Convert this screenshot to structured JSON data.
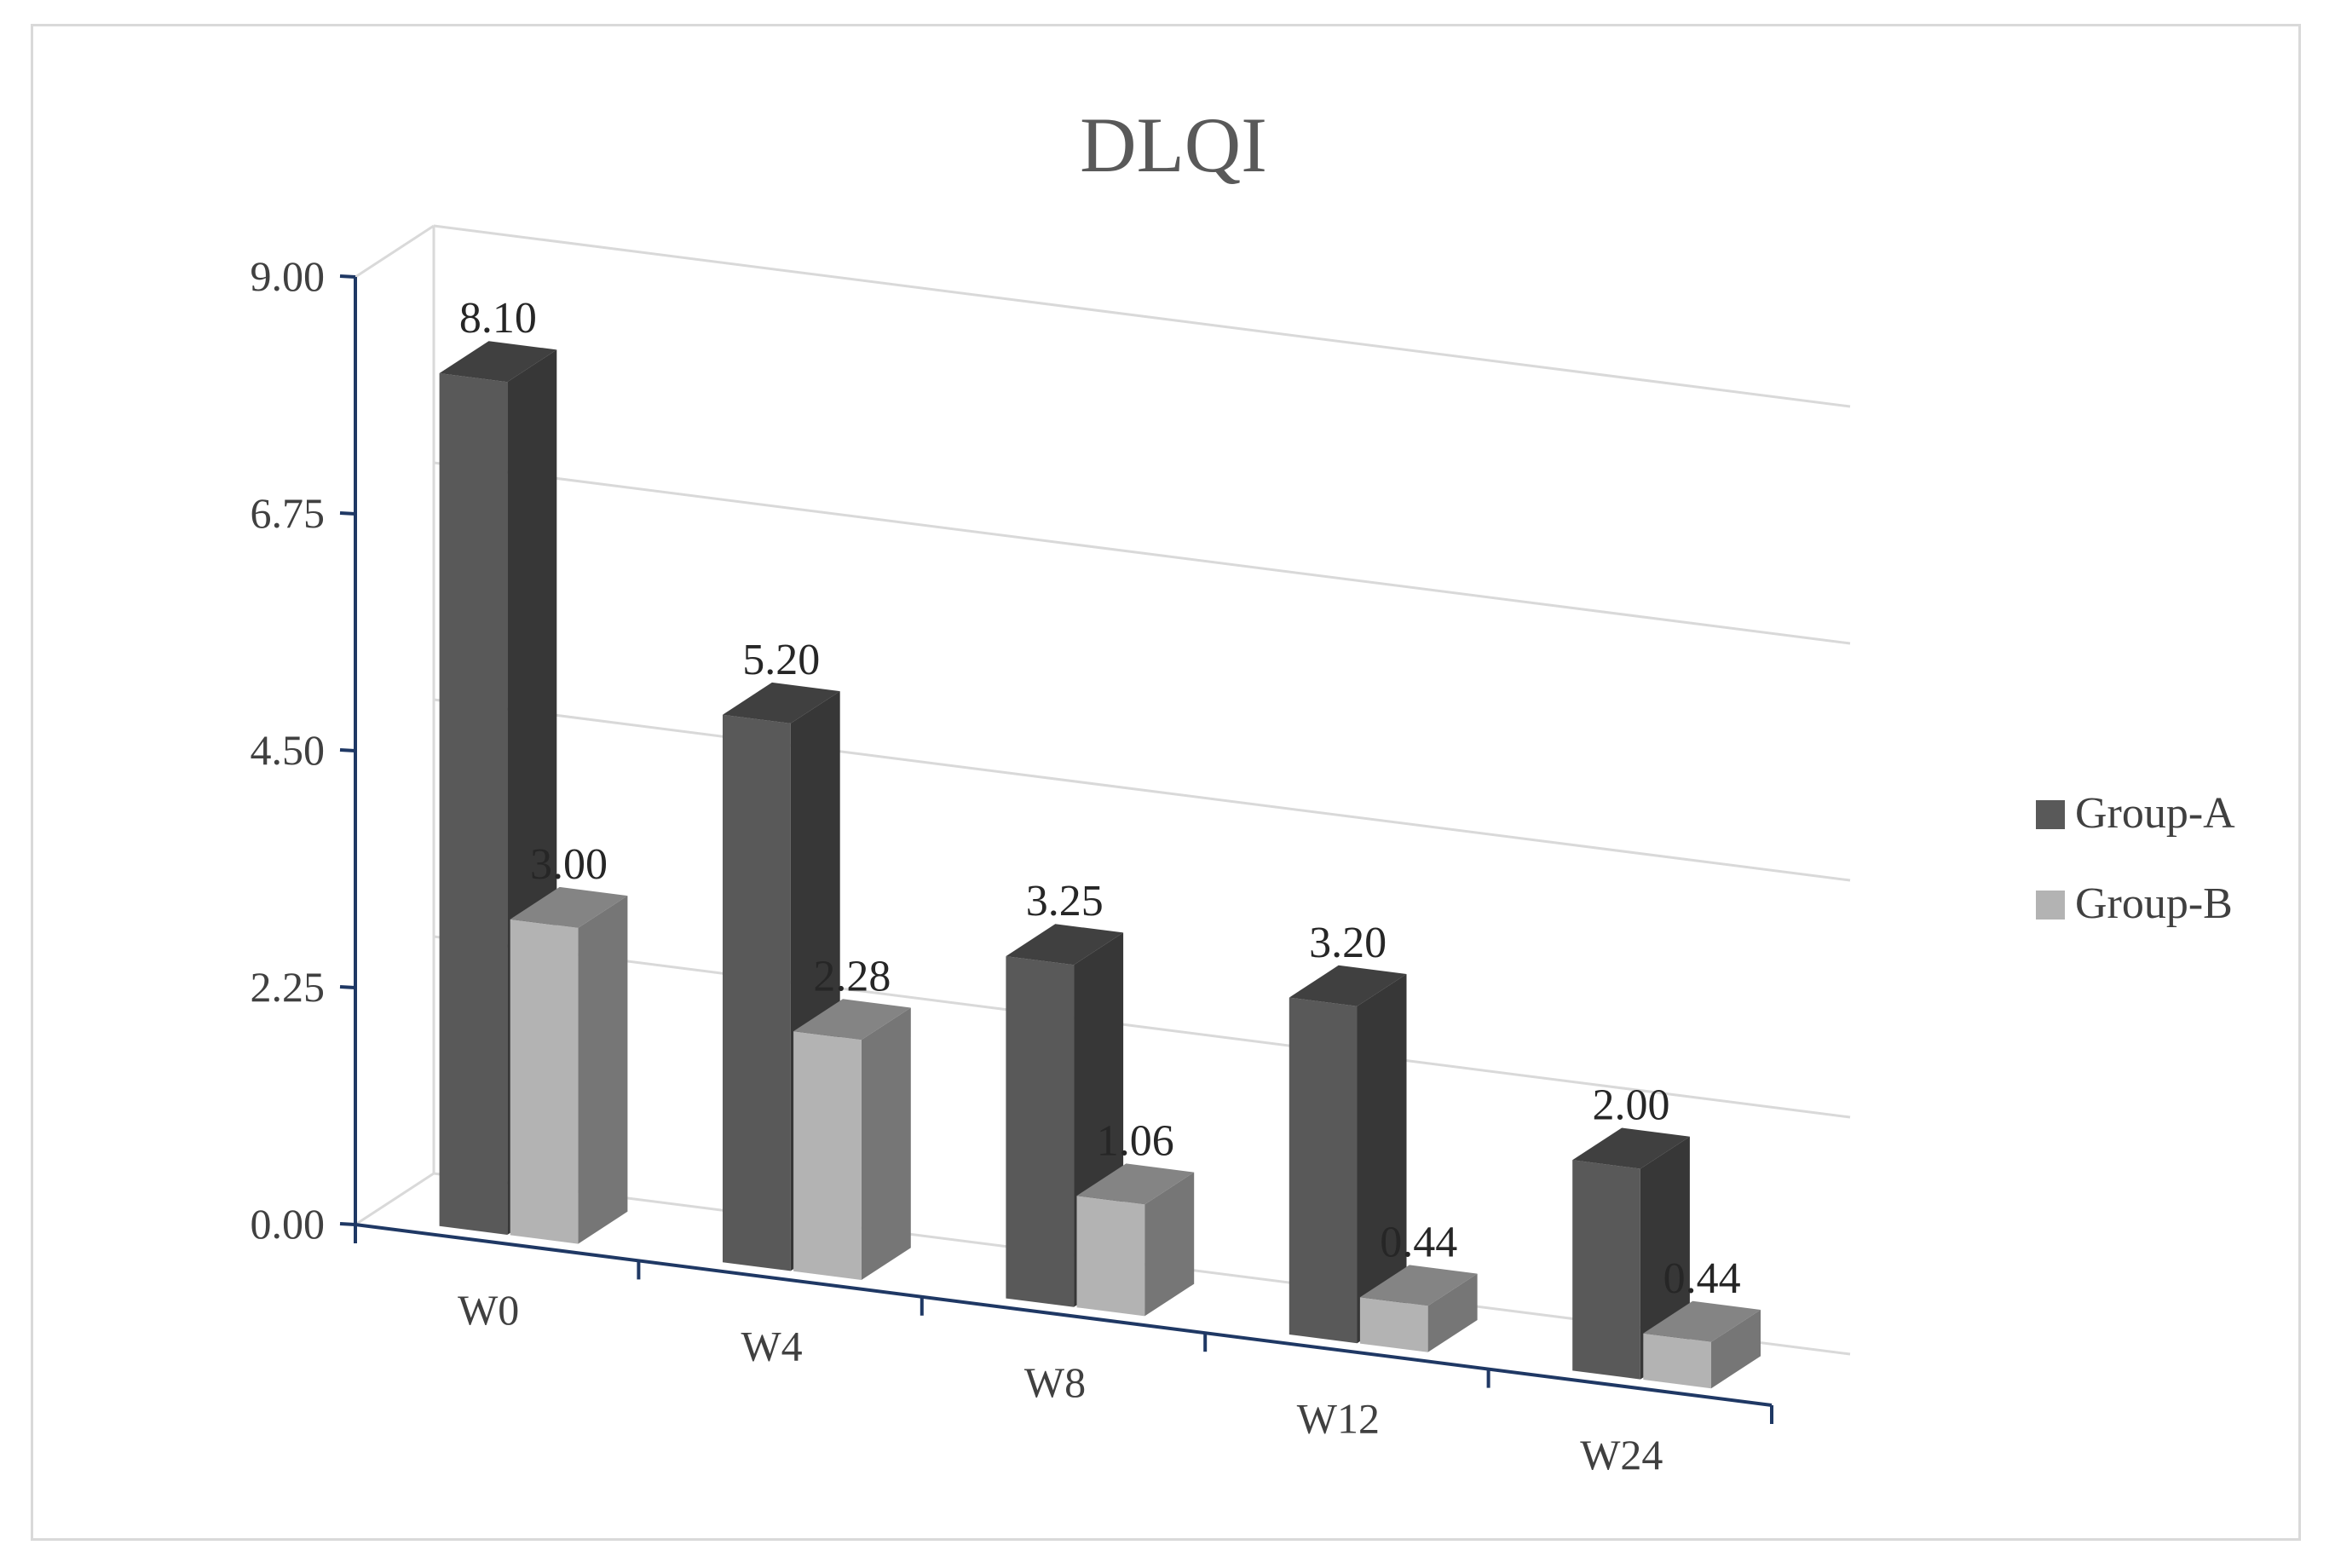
{
  "chart_data": {
    "type": "bar",
    "title": "DLQI",
    "xlabel": "",
    "ylabel": "",
    "categories": [
      "W0",
      "W4",
      "W8",
      "W12",
      "W24"
    ],
    "series": [
      {
        "name": "Group-A",
        "values": [
          8.1,
          5.2,
          3.25,
          3.2,
          2.0
        ],
        "labels": [
          "8.10",
          "5.20",
          "3.25",
          "3.20",
          "2.00"
        ],
        "color": "#595959"
      },
      {
        "name": "Group-B",
        "values": [
          3.0,
          2.28,
          1.06,
          0.44,
          0.44
        ],
        "labels": [
          "3.00",
          "2.28",
          "1.06",
          "0.44",
          "0.44"
        ],
        "color": "#b3b3b3"
      }
    ],
    "yticks": [
      "0.00",
      "2.25",
      "4.50",
      "6.75",
      "9.00"
    ],
    "ylim": [
      0,
      9
    ],
    "grid": true,
    "legend": "right",
    "style": "3d-clustered-column"
  }
}
